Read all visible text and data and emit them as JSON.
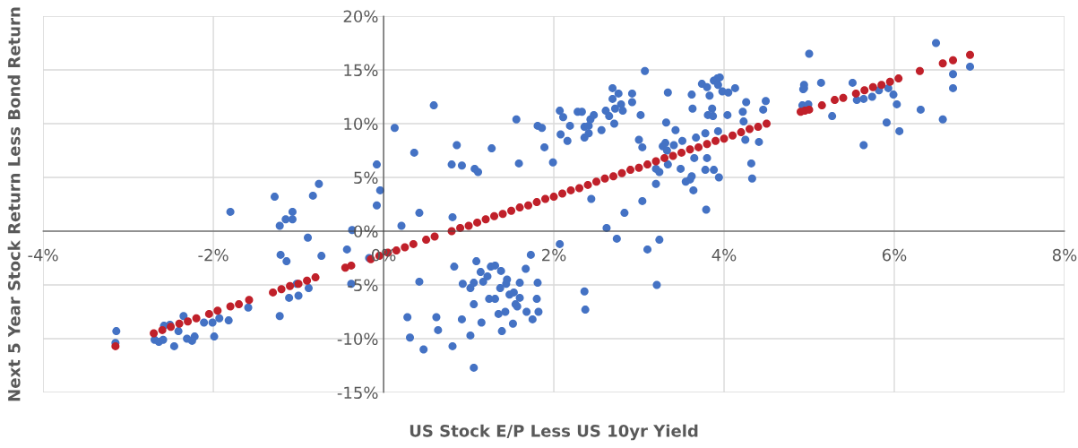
{
  "chart_data": {
    "type": "scatter",
    "xlabel": "US Stock E/P Less US 10yr Yield",
    "ylabel": "Next 5 Year Stock Return Less Bond Return",
    "xlim": [
      -4,
      8
    ],
    "ylim": [
      -15,
      20
    ],
    "xticks": [
      {
        "value": -4,
        "label": "-4%"
      },
      {
        "value": -2,
        "label": "-2%"
      },
      {
        "value": 0,
        "label": "0%"
      },
      {
        "value": 2,
        "label": "2%"
      },
      {
        "value": 4,
        "label": "4%"
      },
      {
        "value": 6,
        "label": "6%"
      },
      {
        "value": 8,
        "label": "8%"
      }
    ],
    "yticks": [
      {
        "value": -15,
        "label": "-15%"
      },
      {
        "value": -10,
        "label": "-10%"
      },
      {
        "value": -5,
        "label": "-5%"
      },
      {
        "value": 0,
        "label": "0%"
      },
      {
        "value": 5,
        "label": "5%"
      },
      {
        "value": 10,
        "label": "10%"
      },
      {
        "value": 15,
        "label": "15%"
      },
      {
        "value": 20,
        "label": "20%"
      }
    ],
    "grid": true,
    "marker": "circle",
    "series": [
      {
        "color": "#4472c4",
        "x": [
          -3.14,
          -3.15,
          -2.69,
          -2.64,
          -2.59,
          -2.58,
          -2.51,
          -2.46,
          -2.41,
          -2.35,
          -2.31,
          -2.25,
          -2.22,
          -2.11,
          -2.01,
          -1.99,
          -1.93,
          -1.82,
          -1.8,
          -1.59,
          -1.28,
          -1.22,
          -1.21,
          -1.22,
          -1.15,
          -1.14,
          -1.11,
          -1.07,
          -1.07,
          -1.02,
          -1.0,
          -0.89,
          -0.88,
          -0.83,
          -0.76,
          -0.73,
          -0.43,
          -0.38,
          -0.37,
          -0.17,
          -0.08,
          -0.04,
          -0.08,
          0.13,
          0.36,
          0.59,
          0.86,
          0.8,
          0.92,
          1.07,
          1.11,
          1.27,
          1.56,
          1.59,
          1.81,
          1.86,
          1.89,
          1.99,
          0.21,
          0.42,
          0.81,
          2.44,
          2.62,
          2.07,
          1.73,
          0.83,
          1.09,
          1.14,
          1.17,
          1.26,
          1.31,
          1.22,
          1.38,
          1.45,
          1.44,
          1.37,
          1.48,
          1.53,
          1.6,
          1.67,
          1.81,
          1.6,
          1.8,
          1.55,
          1.57,
          1.68,
          1.82,
          1.75,
          1.43,
          1.35,
          1.52,
          1.39,
          1.24,
          1.31,
          1.06,
          1.15,
          1.02,
          1.06,
          0.93,
          1.02,
          1.06,
          0.92,
          0.81,
          0.42,
          0.28,
          0.31,
          0.47,
          0.62,
          0.64,
          2.36,
          2.37,
          2.07,
          2.11,
          2.08,
          2.16,
          2.19,
          2.28,
          2.33,
          2.36,
          2.41,
          2.36,
          2.41,
          2.43,
          2.47,
          2.56,
          2.61,
          2.65,
          2.69,
          2.69,
          2.71,
          2.72,
          2.76,
          2.79,
          2.81,
          2.92,
          2.92,
          3.02,
          3.07,
          3.0,
          3.04,
          2.74,
          2.83,
          3.04,
          3.1,
          3.24,
          3.21,
          3.2,
          3.2,
          3.24,
          3.32,
          3.34,
          3.28,
          3.31,
          3.33,
          3.34,
          3.41,
          3.43,
          3.49,
          3.51,
          3.55,
          3.6,
          3.62,
          3.64,
          3.65,
          3.63,
          3.62,
          3.67,
          3.74,
          3.8,
          3.83,
          3.78,
          3.8,
          3.78,
          3.79,
          3.81,
          3.86,
          3.87,
          3.88,
          3.94,
          3.93,
          3.88,
          3.92,
          3.95,
          3.93,
          3.98,
          4.04,
          4.05,
          4.13,
          4.22,
          4.23,
          4.26,
          4.25,
          4.32,
          4.33,
          4.41,
          4.46,
          4.49,
          4.94,
          4.94,
          4.93,
          4.92,
          4.99,
          5.14,
          5.0,
          5.27,
          5.51,
          5.56,
          5.64,
          5.74,
          5.64,
          5.82,
          5.93,
          5.99,
          6.03,
          5.91,
          6.06,
          6.31,
          6.57,
          6.69,
          6.69,
          6.89,
          6.49
        ],
        "values": [
          -9.3,
          -10.4,
          -10.1,
          -10.3,
          -10.1,
          -8.8,
          -8.7,
          -10.7,
          -9.3,
          -7.9,
          -10.0,
          -10.2,
          -9.8,
          -8.5,
          -8.5,
          -9.8,
          -8.1,
          -8.3,
          1.8,
          -7.1,
          3.2,
          0.5,
          -2.2,
          -7.9,
          1.1,
          -2.8,
          -6.2,
          1.8,
          1.1,
          -4.9,
          -6.0,
          -0.6,
          -5.3,
          3.3,
          4.4,
          -2.3,
          -1.7,
          -4.9,
          0.1,
          -2.5,
          6.2,
          3.8,
          2.4,
          9.6,
          7.3,
          11.7,
          8.0,
          6.2,
          6.1,
          5.8,
          5.5,
          7.7,
          10.4,
          6.3,
          9.8,
          9.6,
          7.8,
          6.4,
          0.5,
          1.7,
          1.3,
          3.0,
          0.3,
          -1.2,
          -2.2,
          -3.3,
          -2.8,
          -3.8,
          -4.7,
          -3.3,
          -3.2,
          -4.2,
          -3.7,
          -4.5,
          -4.9,
          -5.3,
          -5.9,
          -5.7,
          -4.8,
          -3.5,
          -4.8,
          -6.2,
          -6.3,
          -6.8,
          -7.0,
          -7.5,
          -7.5,
          -8.2,
          -7.5,
          -7.7,
          -8.6,
          -9.3,
          -6.3,
          -6.3,
          -6.8,
          -8.5,
          -9.7,
          -12.7,
          -4.9,
          -5.3,
          -4.8,
          -8.2,
          -10.7,
          -4.7,
          -8.0,
          -9.9,
          -11.0,
          -8.0,
          -9.2,
          -5.6,
          -7.3,
          11.2,
          10.6,
          9.0,
          8.4,
          9.8,
          11.1,
          11.1,
          9.7,
          9.8,
          8.7,
          9.1,
          10.4,
          10.8,
          9.4,
          11.2,
          10.7,
          13.3,
          12.3,
          10.0,
          11.4,
          12.8,
          11.8,
          11.2,
          12.8,
          12.0,
          10.8,
          14.9,
          8.5,
          7.8,
          -0.7,
          1.7,
          2.8,
          -1.7,
          -0.8,
          -5.0,
          4.4,
          5.8,
          5.5,
          10.1,
          12.9,
          7.9,
          8.2,
          7.5,
          6.2,
          8.0,
          9.4,
          5.8,
          8.4,
          4.6,
          4.8,
          5.1,
          3.8,
          6.8,
          11.4,
          12.7,
          8.7,
          13.7,
          13.4,
          12.6,
          9.1,
          6.8,
          5.7,
          2.0,
          10.8,
          11.4,
          10.7,
          5.7,
          5.0,
          9.3,
          14.0,
          14.2,
          14.3,
          13.6,
          13.0,
          10.8,
          12.9,
          13.3,
          11.1,
          10.2,
          12.0,
          8.5,
          6.3,
          4.9,
          8.3,
          11.3,
          12.1,
          13.3,
          13.6,
          13.2,
          11.7,
          11.8,
          13.8,
          16.5,
          10.7,
          13.8,
          12.2,
          12.3,
          12.5,
          8.0,
          13.1,
          13.3,
          12.7,
          11.8,
          10.1,
          9.3,
          11.3,
          10.4,
          14.6,
          13.3,
          15.3,
          17.5
        ]
      },
      {
        "color": "#c0202a",
        "x": [
          -3.15,
          -2.7,
          -2.6,
          -2.5,
          -2.4,
          -2.3,
          -2.2,
          -2.05,
          -1.95,
          -1.8,
          -1.7,
          -1.58,
          -1.3,
          -1.2,
          -1.1,
          -1.0,
          -0.9,
          -0.8,
          -0.45,
          -0.38,
          -0.15,
          -0.05,
          0.05,
          0.15,
          0.25,
          0.35,
          0.5,
          0.6,
          0.8,
          0.9,
          1.0,
          1.1,
          1.2,
          1.3,
          1.4,
          1.5,
          1.6,
          1.7,
          1.8,
          1.9,
          2.0,
          2.1,
          2.2,
          2.3,
          2.4,
          2.5,
          2.6,
          2.7,
          2.8,
          2.9,
          3.0,
          3.1,
          3.2,
          3.3,
          3.4,
          3.5,
          3.6,
          3.7,
          3.8,
          3.9,
          4.0,
          4.1,
          4.2,
          4.3,
          4.4,
          4.5,
          4.9,
          4.95,
          5.0,
          5.15,
          5.3,
          5.4,
          5.55,
          5.65,
          5.75,
          5.85,
          5.95,
          6.05,
          6.3,
          6.57,
          6.69,
          6.89
        ],
        "values": [
          -10.7,
          -9.5,
          -9.2,
          -8.9,
          -8.6,
          -8.4,
          -8.1,
          -7.7,
          -7.4,
          -7.0,
          -6.8,
          -6.4,
          -5.7,
          -5.4,
          -5.1,
          -4.9,
          -4.6,
          -4.3,
          -3.4,
          -3.2,
          -2.6,
          -2.3,
          -2.0,
          -1.8,
          -1.5,
          -1.2,
          -0.8,
          -0.5,
          0.0,
          0.3,
          0.5,
          0.8,
          1.1,
          1.4,
          1.6,
          1.9,
          2.2,
          2.4,
          2.7,
          3.0,
          3.2,
          3.5,
          3.8,
          4.0,
          4.3,
          4.6,
          4.9,
          5.1,
          5.4,
          5.7,
          5.9,
          6.2,
          6.5,
          6.8,
          7.0,
          7.3,
          7.6,
          7.8,
          8.1,
          8.4,
          8.6,
          8.9,
          9.2,
          9.5,
          9.7,
          10.0,
          11.1,
          11.2,
          11.3,
          11.7,
          12.2,
          12.4,
          12.8,
          13.1,
          13.4,
          13.6,
          13.9,
          14.2,
          14.9,
          15.6,
          15.9,
          16.4
        ]
      }
    ]
  }
}
